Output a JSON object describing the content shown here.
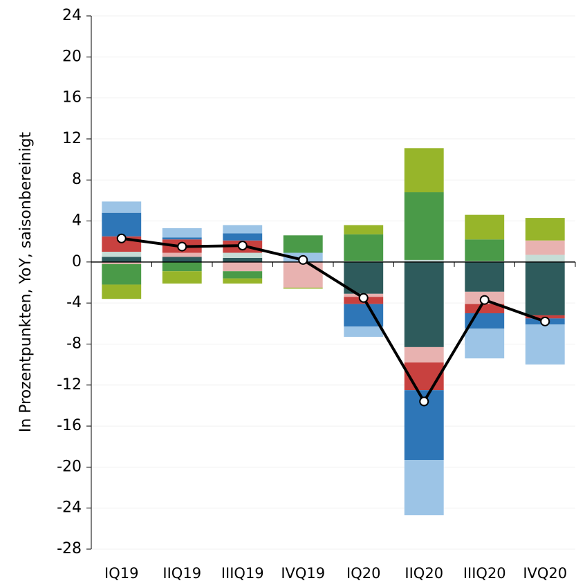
{
  "chart_data": {
    "type": "bar",
    "stacked": true,
    "y_label": "In Prozentpunkten, YoY, saisonbereinigt",
    "categories": [
      "IQ19",
      "IIQ19",
      "IIIQ19",
      "IVQ19",
      "IQ20",
      "IIQ20",
      "IIIQ20",
      "IVQ20"
    ],
    "series": [
      {
        "color": "#2e5b5c",
        "values": [
          0.5,
          0.5,
          0.4,
          0,
          -3.1,
          -8.3,
          -2.9,
          -5.2
        ]
      },
      {
        "color": "#c6ddd6",
        "values": [
          0.5,
          0,
          0.5,
          0,
          0.1,
          0.2,
          0.1,
          0.7
        ]
      },
      {
        "color": "#e8b2b0",
        "values": [
          -0.2,
          0.4,
          -0.9,
          -2.5,
          -0.3,
          -1.5,
          -1.2,
          1.4
        ]
      },
      {
        "color": "#c8413f",
        "values": [
          1.5,
          1.3,
          1.2,
          0,
          -0.7,
          -2.7,
          -0.9,
          -0.3
        ]
      },
      {
        "color": "#2e76b7",
        "values": [
          2.3,
          0.2,
          0.7,
          0,
          -2.2,
          -6.8,
          -1.5,
          -0.6
        ]
      },
      {
        "color": "#9cc4e6",
        "values": [
          1.1,
          0.9,
          0.8,
          0.9,
          -1.0,
          -5.4,
          -2.9,
          -3.9
        ]
      },
      {
        "color": "#4a9a48",
        "values": [
          -2.0,
          -0.9,
          -0.7,
          1.7,
          2.6,
          6.6,
          2.1,
          0
        ]
      },
      {
        "color": "#97b52a",
        "values": [
          -1.4,
          -1.2,
          -0.5,
          -0.1,
          0.9,
          4.3,
          2.4,
          2.2
        ]
      },
      {
        "type": "line",
        "color": "#000000",
        "values": [
          2.3,
          1.5,
          1.6,
          0.2,
          -3.5,
          -13.6,
          -3.7,
          -5.8
        ]
      }
    ],
    "ylim": [
      -28,
      24
    ],
    "yticks": [
      -28,
      -24,
      -20,
      -16,
      -12,
      -8,
      -4,
      0,
      4,
      8,
      12,
      16,
      20,
      24
    ],
    "grid": true
  }
}
